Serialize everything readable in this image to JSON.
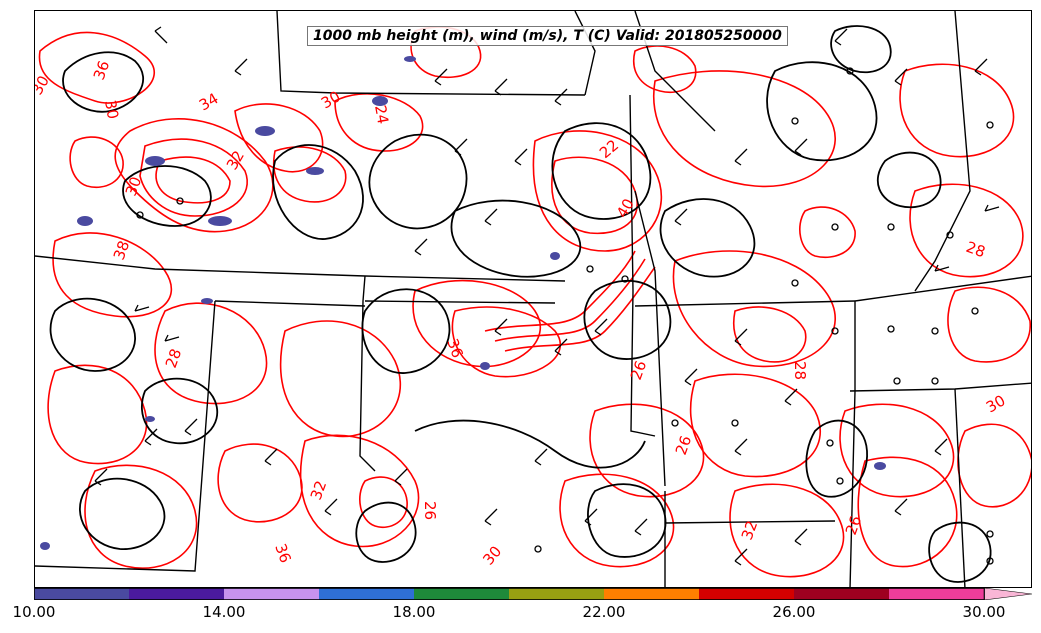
{
  "title": "1000 mb height (m), wind (m/s), T (C) Valid: 201805250000",
  "colorbar": {
    "colors": [
      "#4a4aa0",
      "#4b1a9e",
      "#c792ee",
      "#2f6fd6",
      "#1e8a3a",
      "#98a012",
      "#ff7f00",
      "#d40000",
      "#9e0020",
      "#ee3d9a",
      "#f9b6d6"
    ],
    "tick_labels": [
      "10.00",
      "14.00",
      "18.00",
      "22.00",
      "26.00",
      "30.00"
    ]
  },
  "contour_labels": [
    "36",
    "30",
    "34",
    "32",
    "30",
    "24",
    "22",
    "40",
    "30",
    "38",
    "28",
    "36",
    "26",
    "28",
    "26",
    "26",
    "32",
    "36",
    "30",
    "32",
    "26",
    "28",
    "30",
    "30"
  ],
  "styles": {
    "temperature_contour_color": "#ff0000",
    "height_contour_color": "#000000",
    "state_border_color": "#000000"
  }
}
